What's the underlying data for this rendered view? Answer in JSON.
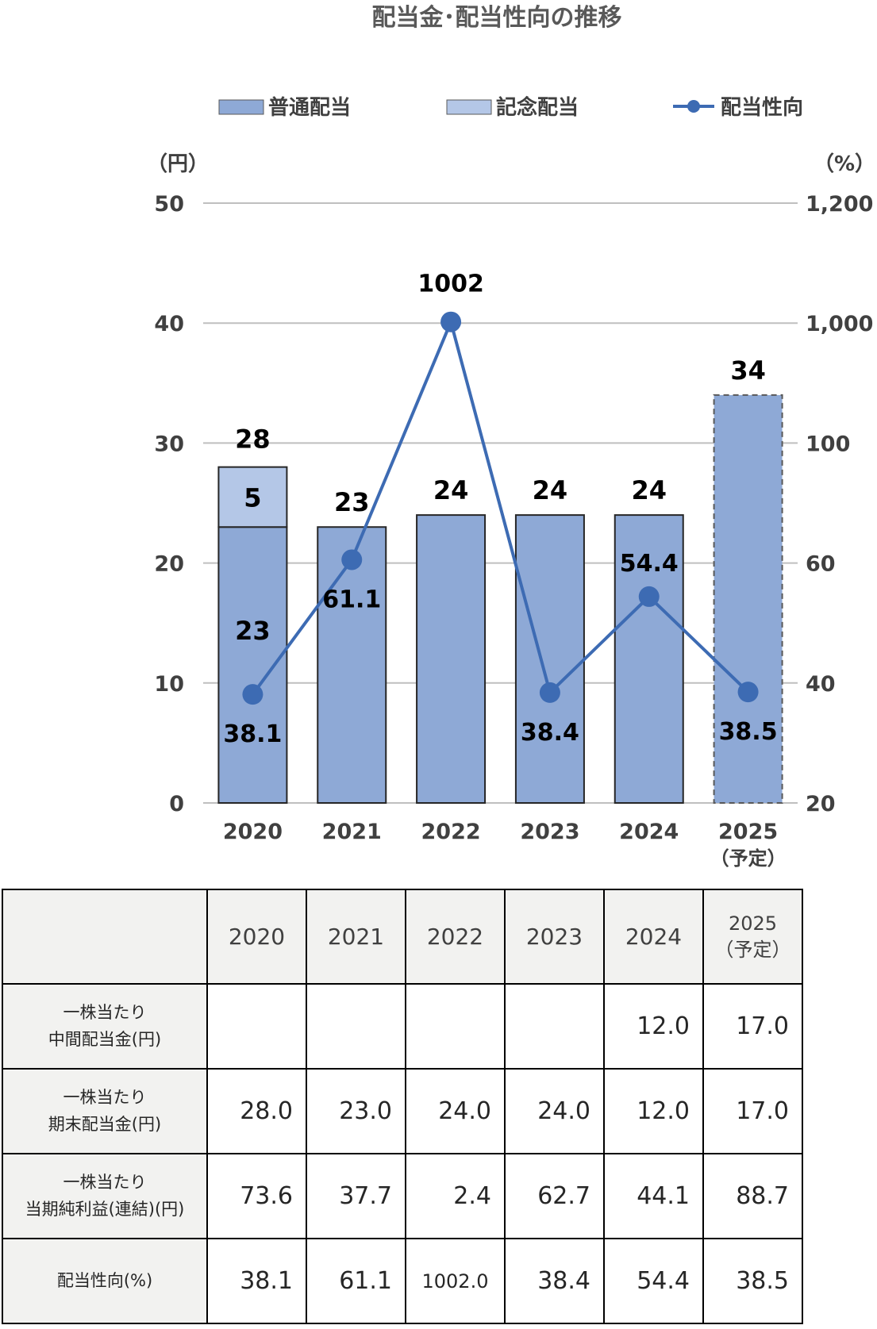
{
  "chart_data": {
    "type": "bar",
    "title": "配当金･配当性向の推移",
    "categories": [
      "2020",
      "2021",
      "2022",
      "2023",
      "2024",
      "2025"
    ],
    "category_sublabels": [
      "",
      "",
      "",
      "",
      "",
      "（予定）"
    ],
    "series": [
      {
        "name": "普通配当",
        "type": "bar",
        "stack": "dividend",
        "values": [
          23,
          23,
          24,
          24,
          24,
          34
        ],
        "labels": [
          "23",
          "23",
          "24",
          "24",
          "24",
          "34"
        ],
        "color": "#8EA9D6"
      },
      {
        "name": "記念配当",
        "type": "bar",
        "stack": "dividend",
        "values": [
          5,
          0,
          0,
          0,
          0,
          0
        ],
        "labels": [
          "5",
          "",
          "",
          "",
          "",
          ""
        ],
        "color": "#B4C7E7"
      },
      {
        "name": "配当性向",
        "type": "line",
        "axis": "right",
        "values": [
          38.1,
          61.1,
          1002,
          38.4,
          54.4,
          38.5
        ],
        "labels": [
          "38.1",
          "61.1",
          "1002",
          "38.4",
          "54.4",
          "38.5"
        ],
        "color": "#3D6BB3"
      }
    ],
    "totals": [
      "28",
      "",
      "",
      "",
      "",
      ""
    ],
    "forecast_index": 5,
    "left_axis": {
      "unit": "（円）",
      "ticks": [
        "0",
        "10",
        "20",
        "30",
        "40",
        "50"
      ],
      "ylim": [
        0,
        50
      ]
    },
    "right_axis": {
      "unit": "（%）",
      "ticks": [
        "20",
        "40",
        "60",
        "100",
        "1,000",
        "1,200"
      ]
    },
    "grid": true,
    "legend_position": "top"
  },
  "table": {
    "header_years": [
      "2020",
      "2021",
      "2022",
      "2023",
      "2024",
      "2025"
    ],
    "header_sub": [
      "",
      "",
      "",
      "",
      "",
      "（予定）"
    ],
    "rows": [
      {
        "label_lines": [
          "一株当たり",
          "中間配当金(円)"
        ],
        "values": [
          "",
          "",
          "",
          "",
          "12.0",
          "17.0"
        ]
      },
      {
        "label_lines": [
          "一株当たり",
          "期末配当金(円)"
        ],
        "values": [
          "28.0",
          "23.0",
          "24.0",
          "24.0",
          "12.0",
          "17.0"
        ]
      },
      {
        "label_lines": [
          "一株当たり",
          "当期純利益(連結)(円)"
        ],
        "values": [
          "73.6",
          "37.7",
          "2.4",
          "62.7",
          "44.1",
          "88.7"
        ]
      },
      {
        "label_lines": [
          "配当性向(%)"
        ],
        "values": [
          "38.1",
          "61.1",
          "1002.0",
          "38.4",
          "54.4",
          "38.5"
        ]
      }
    ]
  }
}
